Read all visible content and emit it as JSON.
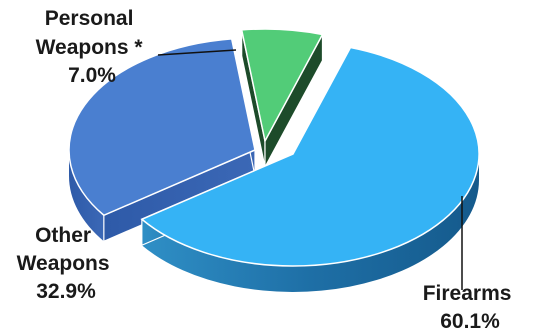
{
  "chart_data": {
    "type": "pie",
    "title": "",
    "slices": [
      {
        "name": "Firearms",
        "value": 60.1,
        "value_label": "60.1%",
        "color": "#35B3F5"
      },
      {
        "name": "Other Weapons",
        "value": 32.9,
        "value_label": "32.9%",
        "color": "#4A7FD0"
      },
      {
        "name": "Personal Weapons *",
        "value": 7.0,
        "value_label": "7.0%",
        "color": "#52CC78"
      }
    ]
  }
}
